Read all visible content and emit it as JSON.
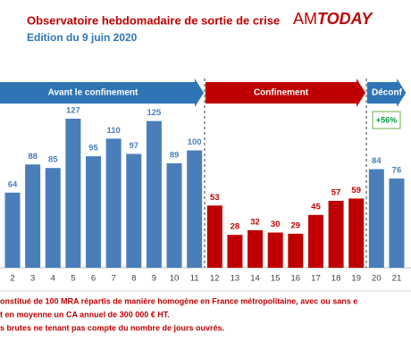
{
  "chart_data": {
    "type": "bar",
    "title": "Observatoire hebdomadaire de sortie de crise",
    "subtitle": "Edition du 9 juin 2020",
    "logo": {
      "part1": "AM",
      "part2": "TODAY"
    },
    "categories": [
      "2",
      "3",
      "4",
      "5",
      "6",
      "7",
      "8",
      "9",
      "10",
      "11",
      "12",
      "13",
      "14",
      "15",
      "16",
      "17",
      "18",
      "19",
      "20",
      "21"
    ],
    "values": [
      64,
      88,
      85,
      127,
      95,
      110,
      97,
      125,
      89,
      100,
      53,
      28,
      32,
      30,
      29,
      45,
      57,
      59,
      84,
      76
    ],
    "colors": [
      "#4a7ebb",
      "#4a7ebb",
      "#4a7ebb",
      "#4a7ebb",
      "#4a7ebb",
      "#4a7ebb",
      "#4a7ebb",
      "#4a7ebb",
      "#4a7ebb",
      "#4a7ebb",
      "#c00000",
      "#c00000",
      "#c00000",
      "#c00000",
      "#c00000",
      "#c00000",
      "#c00000",
      "#c00000",
      "#4a7ebb",
      "#4a7ebb"
    ],
    "periods": [
      {
        "name": "Avant le confinement",
        "color": "#2e75b6",
        "first": 0,
        "last": 9
      },
      {
        "name": "Confinement",
        "color": "#c00000",
        "first": 10,
        "last": 17
      },
      {
        "name": "Déconf",
        "color": "#2e75b6",
        "first": 18,
        "last": 19
      }
    ],
    "annotation": "+56%",
    "notes": [
      "onstitué de 100 MRA répartis de manière homogène en France métropolitaine, avec ou sans e",
      "t en moyenne un CA annuel de 300 000 € HT.",
      "s brutes ne tenant pas compte du nombre de jours ouvrés."
    ]
  }
}
